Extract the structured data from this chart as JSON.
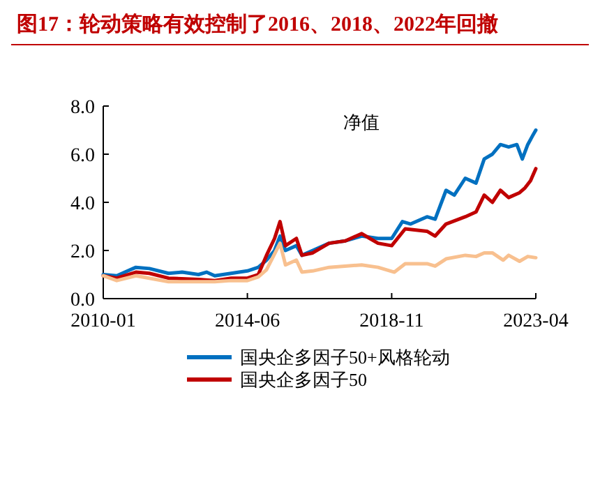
{
  "chart_data": {
    "type": "line",
    "title": "图17：轮动策略有效控制了2016、2018、2022年回撤",
    "annotations": [
      "净值"
    ],
    "xlim": [
      "2010-01",
      "2023-04"
    ],
    "xticks": [
      "2010-01",
      "2014-06",
      "2018-11",
      "2023-04"
    ],
    "ylim": [
      0,
      8
    ],
    "yticks": [
      {
        "value": 0,
        "label": "0.0"
      },
      {
        "value": 2,
        "label": "2.0"
      },
      {
        "value": 4,
        "label": "4.0"
      },
      {
        "value": 6,
        "label": "6.0"
      },
      {
        "value": 8,
        "label": "8.0"
      }
    ],
    "grid": false,
    "legend": "bottom",
    "line_style": "solid",
    "marker": "none",
    "series": [
      {
        "name": "国央企多因子50+风格轮动",
        "color": "#0070c0",
        "x": [
          "2010-01",
          "2010-06",
          "2010-10",
          "2011-01",
          "2011-06",
          "2012-01",
          "2012-06",
          "2012-12",
          "2013-03",
          "2013-06",
          "2013-12",
          "2014-06",
          "2014-10",
          "2015-01",
          "2015-04",
          "2015-06",
          "2015-08",
          "2015-12",
          "2016-02",
          "2016-06",
          "2016-12",
          "2017-06",
          "2017-12",
          "2018-06",
          "2018-11",
          "2019-03",
          "2019-06",
          "2019-12",
          "2020-03",
          "2020-07",
          "2020-10",
          "2021-02",
          "2021-06",
          "2021-09",
          "2021-12",
          "2022-03",
          "2022-06",
          "2022-09",
          "2022-11",
          "2023-01",
          "2023-03",
          "2023-04"
        ],
        "values": [
          1.0,
          0.95,
          1.15,
          1.3,
          1.25,
          1.05,
          1.1,
          1.0,
          1.1,
          0.95,
          1.05,
          1.15,
          1.3,
          1.6,
          2.0,
          2.6,
          2.0,
          2.2,
          1.8,
          2.0,
          2.3,
          2.4,
          2.6,
          2.5,
          2.5,
          3.2,
          3.1,
          3.4,
          3.3,
          4.5,
          4.3,
          5.0,
          4.8,
          5.8,
          6.0,
          6.4,
          6.3,
          6.4,
          5.8,
          6.4,
          6.8,
          7.0
        ]
      },
      {
        "name": "国央企多因子50",
        "color": "#c00000",
        "x": [
          "2010-01",
          "2010-06",
          "2011-01",
          "2011-06",
          "2012-01",
          "2012-12",
          "2013-06",
          "2013-12",
          "2014-06",
          "2014-10",
          "2015-01",
          "2015-04",
          "2015-06",
          "2015-08",
          "2015-12",
          "2016-02",
          "2016-06",
          "2016-12",
          "2017-06",
          "2017-12",
          "2018-03",
          "2018-06",
          "2018-11",
          "2019-04",
          "2019-12",
          "2020-03",
          "2020-07",
          "2021-02",
          "2021-06",
          "2021-09",
          "2021-12",
          "2022-03",
          "2022-06",
          "2022-10",
          "2022-12",
          "2023-02",
          "2023-04"
        ],
        "values": [
          0.95,
          0.85,
          1.1,
          1.05,
          0.85,
          0.8,
          0.75,
          0.85,
          0.85,
          1.0,
          1.8,
          2.5,
          3.2,
          2.2,
          2.5,
          1.8,
          1.9,
          2.3,
          2.4,
          2.7,
          2.5,
          2.3,
          2.2,
          2.9,
          2.8,
          2.6,
          3.1,
          3.4,
          3.6,
          4.3,
          4.0,
          4.5,
          4.2,
          4.4,
          4.6,
          4.9,
          5.4
        ]
      },
      {
        "color": "#f8c08f",
        "x": [
          "2010-01",
          "2010-06",
          "2011-01",
          "2011-06",
          "2012-01",
          "2012-12",
          "2013-06",
          "2013-12",
          "2014-06",
          "2014-10",
          "2015-01",
          "2015-06",
          "2015-08",
          "2015-12",
          "2016-02",
          "2016-06",
          "2016-12",
          "2017-12",
          "2018-06",
          "2018-12",
          "2019-04",
          "2019-12",
          "2020-03",
          "2020-07",
          "2021-02",
          "2021-06",
          "2021-09",
          "2021-12",
          "2022-04",
          "2022-06",
          "2022-10",
          "2023-01",
          "2023-04"
        ],
        "values": [
          0.95,
          0.75,
          0.95,
          0.85,
          0.7,
          0.7,
          0.7,
          0.75,
          0.75,
          0.9,
          1.2,
          2.3,
          1.4,
          1.6,
          1.1,
          1.15,
          1.3,
          1.4,
          1.3,
          1.1,
          1.45,
          1.45,
          1.35,
          1.65,
          1.8,
          1.75,
          1.9,
          1.9,
          1.6,
          1.8,
          1.55,
          1.75,
          1.7
        ]
      }
    ]
  }
}
